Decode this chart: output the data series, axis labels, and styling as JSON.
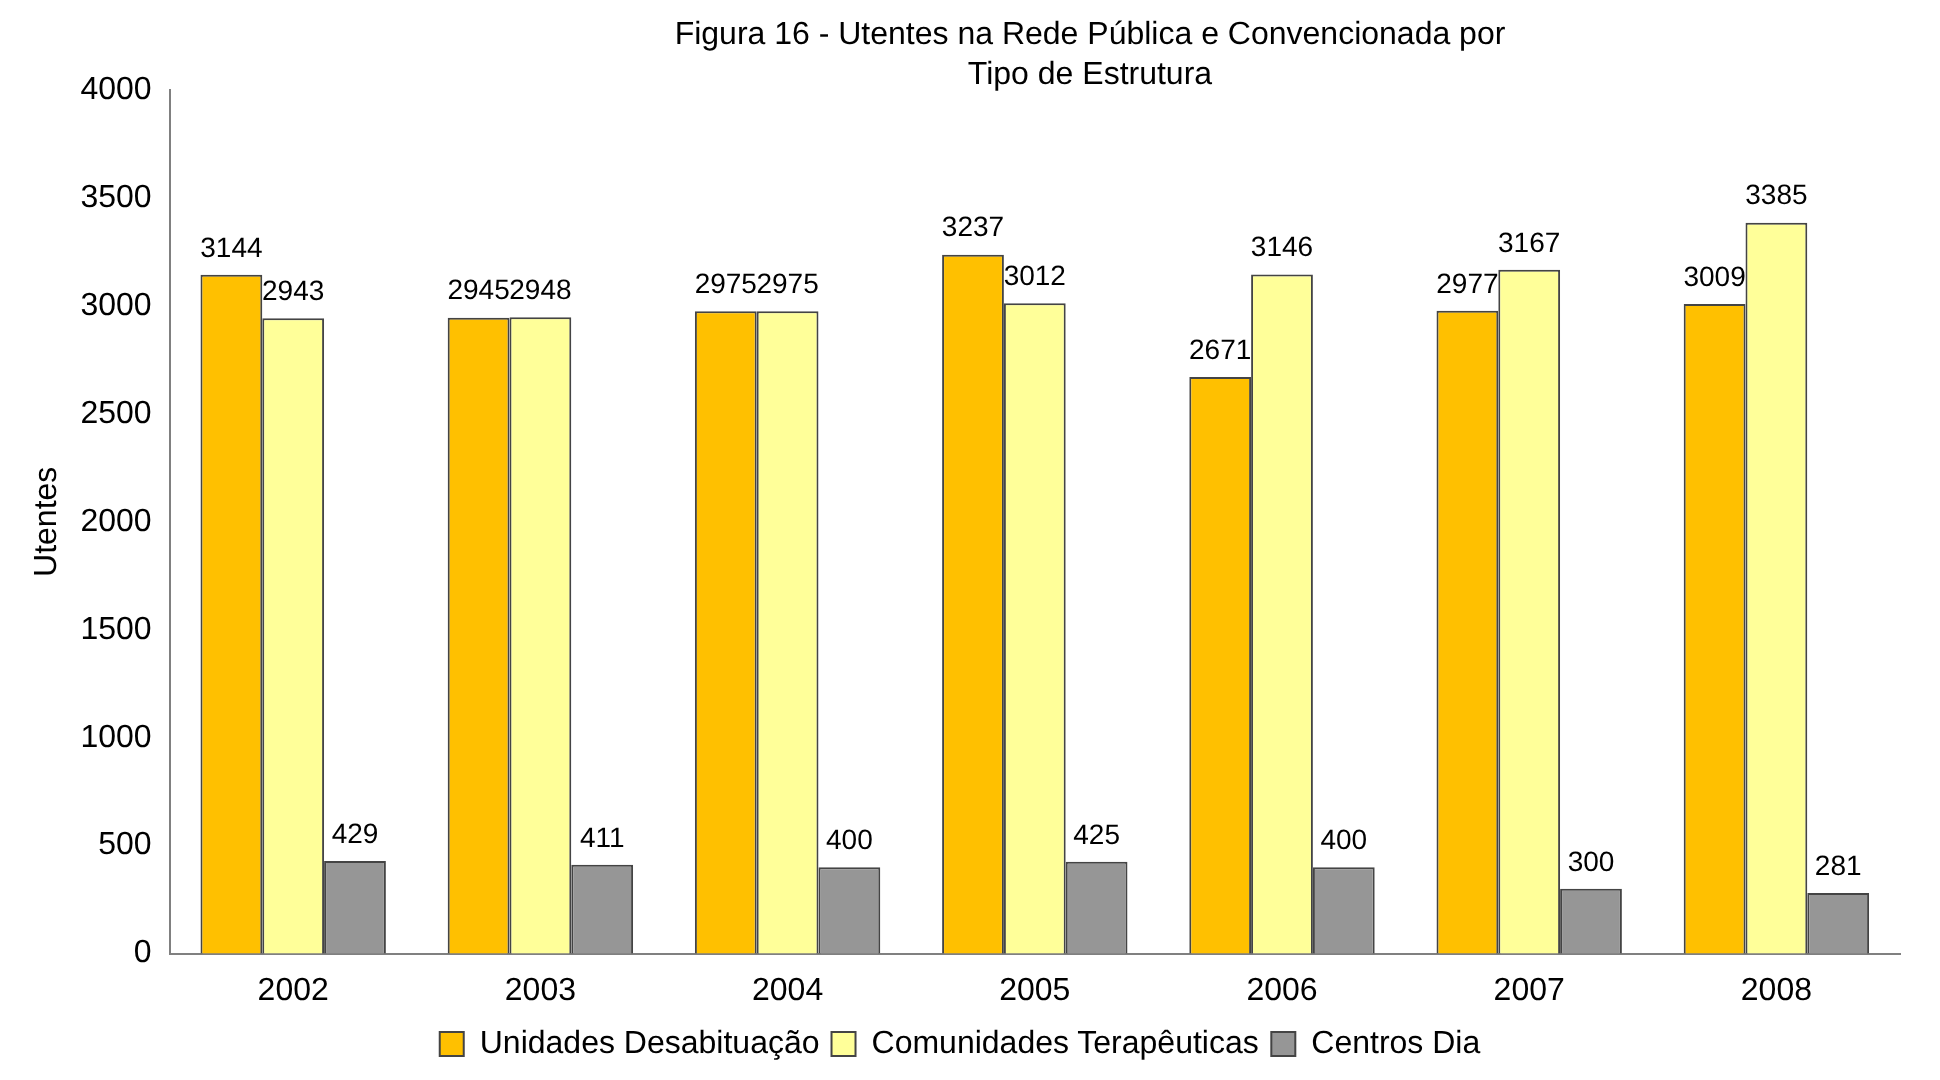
{
  "chart_data": {
    "type": "bar",
    "title": "Figura 16 - Utentes na Rede Pública e Convencionada por Tipo de Estrutura",
    "ylabel": "Utentes",
    "categories": [
      "2002",
      "2003",
      "2004",
      "2005",
      "2006",
      "2007",
      "2008"
    ],
    "series": [
      {
        "name": "Unidades Desabituação",
        "color": "#ffc000",
        "values": [
          3144,
          2945,
          2975,
          3237,
          2671,
          2977,
          3009
        ]
      },
      {
        "name": "Comunidades Terapêuticas",
        "color": "#ffff99",
        "values": [
          2943,
          2948,
          2975,
          3012,
          3146,
          3167,
          3385
        ]
      },
      {
        "name": "Centros Dia",
        "color": "#969696",
        "values": [
          429,
          411,
          400,
          425,
          400,
          300,
          281
        ]
      }
    ],
    "ylim": [
      0,
      4000
    ],
    "yticks": [
      0,
      500,
      1000,
      1500,
      2000,
      2500,
      3000,
      3500,
      4000
    ],
    "grid": false,
    "legend": "bottom",
    "data_labels": true
  }
}
